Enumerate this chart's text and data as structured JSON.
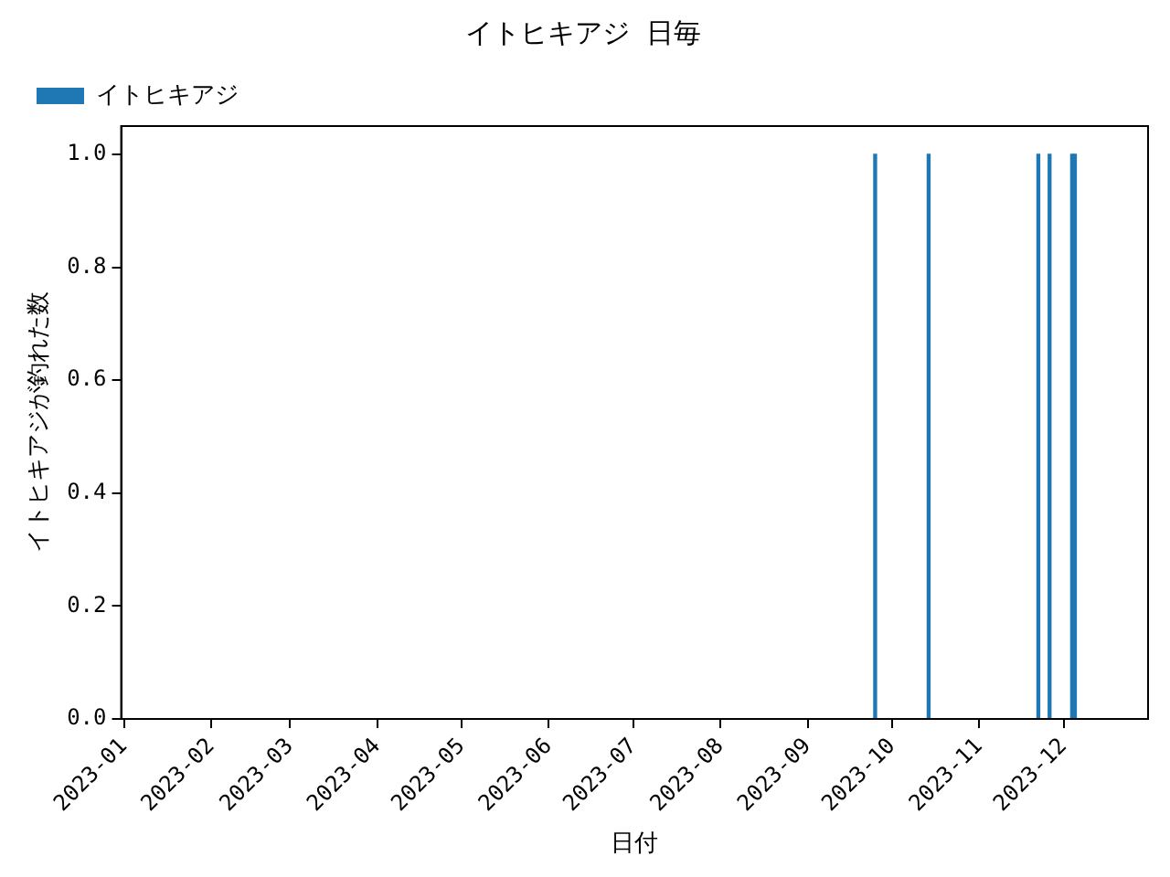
{
  "chart_data": {
    "type": "bar",
    "title": "イトヒキアジ 日毎",
    "xlabel": "日付",
    "ylabel": "イトヒキアジが釣れた数",
    "x": [
      "2023-09-25",
      "2023-10-14",
      "2023-11-22",
      "2023-11-26",
      "2023-12-04",
      "2023-12-05"
    ],
    "series": [
      {
        "name": "イトヒキアジ",
        "color": "#1f77b4",
        "values": [
          1,
          1,
          1,
          1,
          1,
          1
        ]
      }
    ],
    "xlim": [
      "2022-12-31",
      "2023-12-31"
    ],
    "xticks": [
      {
        "value": "2023-01",
        "label": "2023-01"
      },
      {
        "value": "2023-02",
        "label": "2023-02"
      },
      {
        "value": "2023-03",
        "label": "2023-03"
      },
      {
        "value": "2023-04",
        "label": "2023-04"
      },
      {
        "value": "2023-05",
        "label": "2023-05"
      },
      {
        "value": "2023-06",
        "label": "2023-06"
      },
      {
        "value": "2023-07",
        "label": "2023-07"
      },
      {
        "value": "2023-08",
        "label": "2023-08"
      },
      {
        "value": "2023-09",
        "label": "2023-09"
      },
      {
        "value": "2023-10",
        "label": "2023-10"
      },
      {
        "value": "2023-11",
        "label": "2023-11"
      },
      {
        "value": "2023-12",
        "label": "2023-12"
      }
    ],
    "ylim": [
      0,
      1.05
    ],
    "yticks": [
      {
        "value": 0,
        "label": "0.0"
      },
      {
        "value": 0.2,
        "label": "0.2"
      },
      {
        "value": 0.4,
        "label": "0.4"
      },
      {
        "value": 0.6,
        "label": "0.6"
      },
      {
        "value": 0.8,
        "label": "0.8"
      },
      {
        "value": 1,
        "label": "1.0"
      }
    ],
    "grid": false,
    "legend": "top left"
  }
}
